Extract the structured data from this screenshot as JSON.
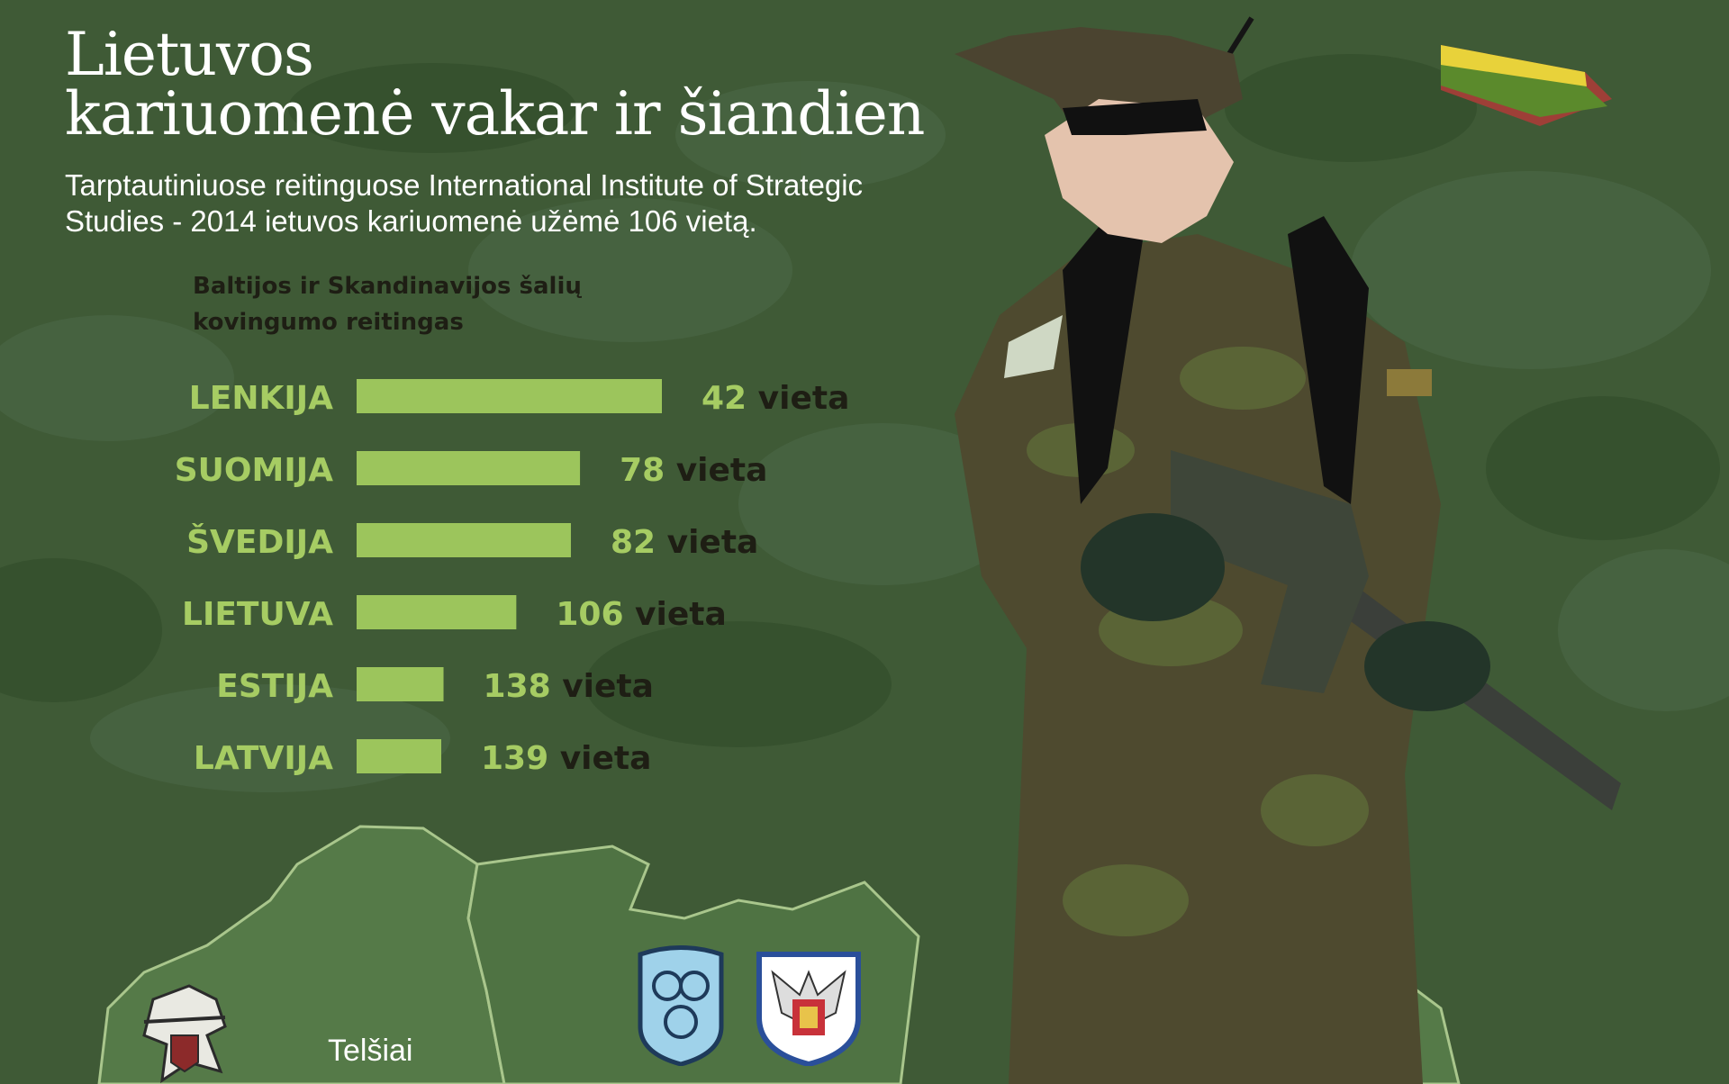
{
  "header": {
    "title_line1": "Lietuvos",
    "title_line2": "kariuomenė vakar ir šiandien",
    "subtitle_line1": "Tarptautiniuose reitinguose International Institute of Strategic",
    "subtitle_line2": "Studies - 2014 ietuvos kariuomenė užėmė 106 vietą."
  },
  "colors": {
    "background": "#3f5a36",
    "bar": "#9cc55c",
    "country_label": "#a6cc63",
    "value_dark": "#1e1e14",
    "flag_yellow": "#e8d23a",
    "flag_green": "#5b8a2c",
    "flag_red": "#b8474a"
  },
  "chart_data": {
    "type": "bar",
    "orientation": "horizontal",
    "title_line1": "Baltijos ir Skandinavijos šalių",
    "title_line2": "kovingumo reitingas",
    "categories": [
      "LENKIJA",
      "SUOMIJA",
      "ŠVEDIJA",
      "LIETUVA",
      "ESTIJA",
      "LATVIJA"
    ],
    "values": [
      42,
      78,
      82,
      106,
      138,
      139
    ],
    "value_suffix": "vieta",
    "note": "shorter bar = worse place; bars drawn inversely to rank",
    "grid": false,
    "legend": "none"
  },
  "map": {
    "city_label": "Telšiai"
  },
  "icons": [
    "knight-emblem-icon",
    "air-force-emblem-icon",
    "eagle-emblem-icon",
    "lithuanian-flag-icon",
    "soldier-illustration"
  ]
}
